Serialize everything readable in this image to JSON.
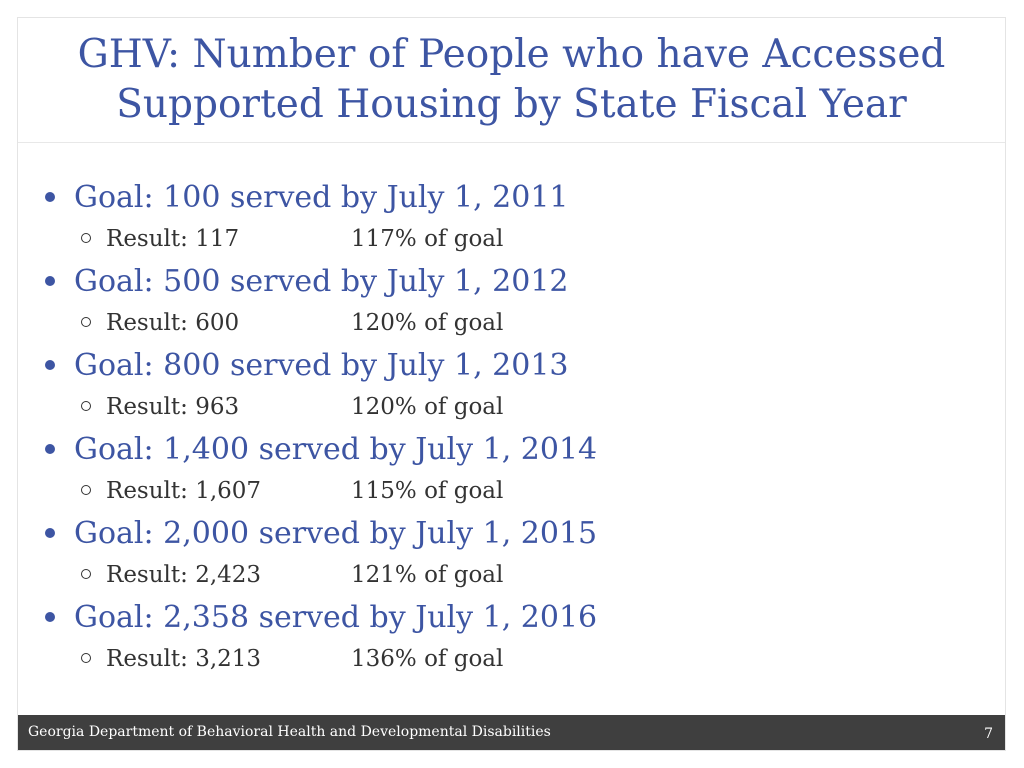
{
  "slide": {
    "title_lines": [
      "GHV: Number of People who have Accessed",
      "Supported Housing by State Fiscal Year"
    ],
    "items": [
      {
        "goal": "Goal: 100 served by July 1, 2011",
        "result": "Result: 117",
        "percent": "117% of goal"
      },
      {
        "goal": "Goal: 500 served by July 1, 2012",
        "result": "Result: 600",
        "percent": "120% of goal"
      },
      {
        "goal": "Goal: 800 served by July 1, 2013",
        "result": "Result: 963",
        "percent": "120% of goal"
      },
      {
        "goal": "Goal: 1,400 served by July 1, 2014",
        "result": "Result: 1,607",
        "percent": "115% of goal"
      },
      {
        "goal": "Goal: 2,000 served by July 1, 2015",
        "result": "Result: 2,423",
        "percent": "121% of goal"
      },
      {
        "goal": "Goal: 2,358 served by July 1, 2016",
        "result": "Result: 3,213",
        "percent": "136% of goal"
      }
    ],
    "footer": "Georgia Department of Behavioral Health and Developmental Disabilities",
    "page_number": "7"
  },
  "colors": {
    "title": "#3d55a3",
    "body_text": "#333333",
    "footer_bar": "#3f3f3f"
  }
}
